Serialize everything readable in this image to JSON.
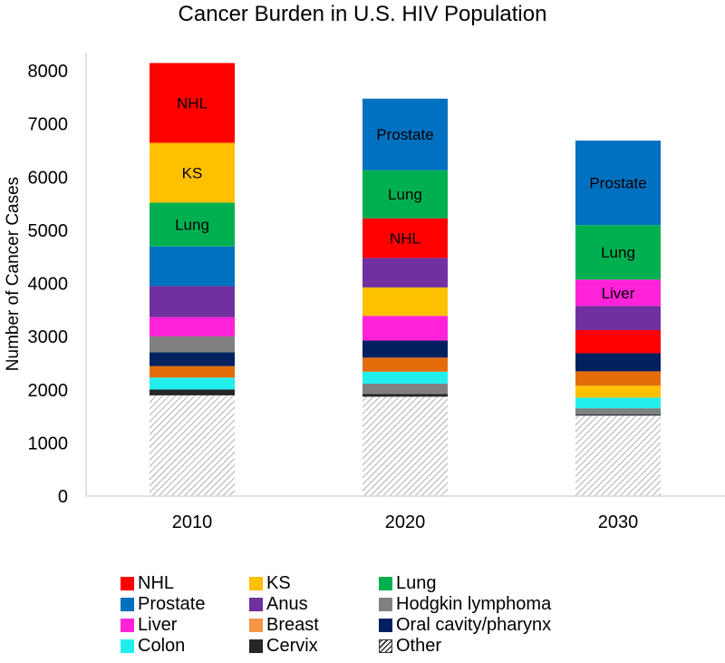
{
  "chart_data": {
    "type": "bar",
    "stacked": true,
    "title": "Cancer Burden in U.S. HIV Population",
    "xlabel": "",
    "ylabel": "Number of Cancer Cases",
    "ylim": [
      0,
      8000
    ],
    "yticks": [
      0,
      1000,
      2000,
      3000,
      4000,
      5000,
      6000,
      7000,
      8000
    ],
    "grid": false,
    "legend_position": "bottom",
    "categories": [
      "2010",
      "2020",
      "2030"
    ],
    "stack_order_bottom_to_top": [
      [
        "Other",
        "Cervix",
        "Colon",
        "Breast",
        "Oral cavity/pharynx",
        "Hodgkin lymphoma",
        "Liver",
        "Anus",
        "Prostate",
        "Lung",
        "KS",
        "NHL"
      ],
      [
        "Other",
        "Cervix",
        "Hodgkin lymphoma",
        "Colon",
        "Breast",
        "Oral cavity/pharynx",
        "Liver",
        "KS",
        "Anus",
        "NHL",
        "Lung",
        "Prostate"
      ],
      [
        "Other",
        "Cervix",
        "Hodgkin lymphoma",
        "Colon",
        "KS",
        "Breast",
        "Oral cavity/pharynx",
        "NHL",
        "Anus",
        "Liver",
        "Lung",
        "Prostate"
      ]
    ],
    "series": [
      {
        "name": "NHL",
        "color": "#FF0000",
        "values": [
          1500,
          745,
          435
        ]
      },
      {
        "name": "KS",
        "color": "#FFC000",
        "values": [
          1125,
          535,
          225
        ]
      },
      {
        "name": "Lung",
        "color": "#00B050",
        "values": [
          825,
          905,
          1025
        ]
      },
      {
        "name": "Prostate",
        "color": "#0070C0",
        "values": [
          745,
          1345,
          1590
        ]
      },
      {
        "name": "Anus",
        "color": "#7030A0",
        "values": [
          585,
          555,
          455
        ]
      },
      {
        "name": "Hodgkin lymphoma",
        "color": "#808080",
        "values": [
          300,
          195,
          115
        ]
      },
      {
        "name": "Liver",
        "color": "#FF22D8",
        "values": [
          360,
          465,
          495
        ]
      },
      {
        "name": "Breast",
        "color": "#E46C0A",
        "legend_color": "#F79646",
        "values": [
          215,
          265,
          270
        ]
      },
      {
        "name": "Oral cavity/pharynx",
        "color": "#002060",
        "values": [
          260,
          320,
          340
        ]
      },
      {
        "name": "Colon",
        "color": "#22EEEE",
        "values": [
          225,
          225,
          200
        ]
      },
      {
        "name": "Cervix",
        "color": "#262626",
        "values": [
          110,
          50,
          22
        ]
      },
      {
        "name": "Other",
        "color": "hatch",
        "values": [
          1895,
          1870,
          1515
        ]
      }
    ],
    "segment_labels": [
      {
        "category": "2010",
        "series": "NHL",
        "text": "NHL"
      },
      {
        "category": "2010",
        "series": "KS",
        "text": "KS"
      },
      {
        "category": "2010",
        "series": "Lung",
        "text": "Lung"
      },
      {
        "category": "2020",
        "series": "Prostate",
        "text": "Prostate"
      },
      {
        "category": "2020",
        "series": "Lung",
        "text": "Lung"
      },
      {
        "category": "2020",
        "series": "NHL",
        "text": "NHL"
      },
      {
        "category": "2030",
        "series": "Prostate",
        "text": "Prostate"
      },
      {
        "category": "2030",
        "series": "Lung",
        "text": "Lung"
      },
      {
        "category": "2030",
        "series": "Liver",
        "text": "Liver"
      }
    ],
    "legend": [
      [
        "NHL",
        "KS",
        "Lung"
      ],
      [
        "Prostate",
        "Anus",
        "Hodgkin lymphoma"
      ],
      [
        "Liver",
        "Breast",
        "Oral cavity/pharynx"
      ],
      [
        "Colon",
        "Cervix",
        "Other"
      ]
    ]
  }
}
